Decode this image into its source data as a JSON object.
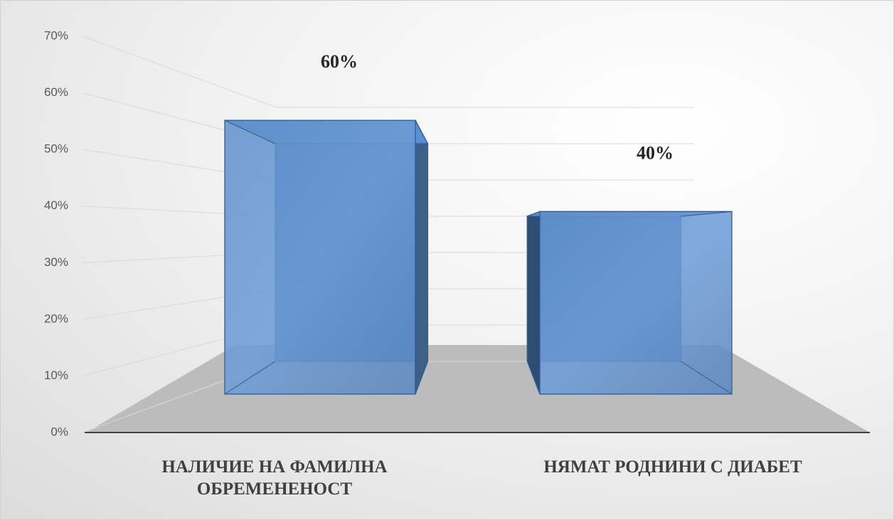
{
  "chart_data": {
    "type": "bar3d",
    "categories": [
      "НАЛИЧИЕ НА ФАМИЛНА ОБРЕМЕНЕНОСТ",
      "НЯМАТ РОДНИНИ С ДИАБЕТ"
    ],
    "values": [
      60,
      40
    ],
    "value_labels": [
      "60%",
      "40%"
    ],
    "color": "#5b8fcf",
    "ylim": [
      0,
      70
    ],
    "yticks": [
      {
        "value": 0,
        "label": "0%"
      },
      {
        "value": 10,
        "label": "10%"
      },
      {
        "value": 20,
        "label": "20%"
      },
      {
        "value": 30,
        "label": "30%"
      },
      {
        "value": 40,
        "label": "40%"
      },
      {
        "value": 50,
        "label": "50%"
      },
      {
        "value": 60,
        "label": "60%"
      },
      {
        "value": 70,
        "label": "70%"
      }
    ],
    "grid": true
  }
}
